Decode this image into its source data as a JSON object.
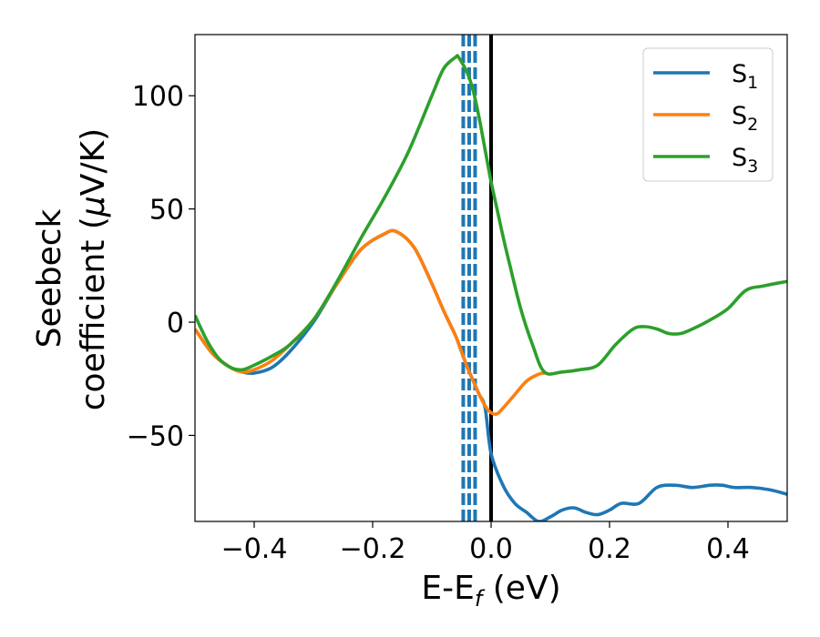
{
  "chart_data": {
    "type": "line",
    "xlabel": {
      "main": "E-E",
      "sub": "f",
      "unit": " (eV)"
    },
    "ylabel": {
      "line1": "Seebeck",
      "line2_pre": "coefficient  (",
      "mu": "μ",
      "line2_post": "V/K)"
    },
    "xlim": [
      -0.5,
      0.5
    ],
    "ylim": [
      -88,
      127
    ],
    "xticks": [
      {
        "value": -0.4,
        "label": "−0.4"
      },
      {
        "value": -0.2,
        "label": "−0.2"
      },
      {
        "value": 0.0,
        "label": "0.0"
      },
      {
        "value": 0.2,
        "label": "0.2"
      },
      {
        "value": 0.4,
        "label": "0.4"
      }
    ],
    "yticks": [
      {
        "value": -50,
        "label": "−50"
      },
      {
        "value": 0,
        "label": "0"
      },
      {
        "value": 50,
        "label": "50"
      },
      {
        "value": 100,
        "label": "100"
      }
    ],
    "grid": false,
    "legend_position": "top-right",
    "vertical_lines": [
      {
        "x": 0.0,
        "color": "#000000",
        "style": "solid"
      },
      {
        "x": -0.047,
        "color": "#1f77b4",
        "style": "dashed"
      },
      {
        "x": -0.037,
        "color": "#1f77b4",
        "style": "dashed"
      },
      {
        "x": -0.027,
        "color": "#1f77b4",
        "style": "dashed"
      }
    ],
    "series": [
      {
        "name": "S",
        "sub": "1",
        "color": "#1f77b4",
        "x": [
          -0.5,
          -0.47,
          -0.44,
          -0.42,
          -0.4,
          -0.37,
          -0.34,
          -0.3,
          -0.26,
          -0.22,
          -0.18,
          -0.16,
          -0.13,
          -0.1,
          -0.08,
          -0.06,
          -0.05,
          -0.04,
          -0.03,
          -0.02,
          -0.01,
          0.0,
          0.02,
          0.04,
          0.06,
          0.08,
          0.1,
          0.12,
          0.14,
          0.16,
          0.18,
          0.2,
          0.22,
          0.25,
          0.28,
          0.31,
          0.34,
          0.37,
          0.39,
          0.41,
          0.44,
          0.47,
          0.5
        ],
        "y": [
          -3,
          -14,
          -20,
          -22,
          -22.5,
          -20,
          -13,
          0,
          17,
          32,
          39,
          40,
          33,
          17,
          5,
          -6,
          -13,
          -20,
          -26,
          -32,
          -38,
          -58,
          -72,
          -80,
          -84,
          -88,
          -86,
          -83,
          -82,
          -84,
          -85,
          -83,
          -80,
          -80,
          -73,
          -72,
          -73,
          -72,
          -72,
          -73,
          -73,
          -74,
          -76
        ]
      },
      {
        "name": "S",
        "sub": "2",
        "color": "#ff7f0e",
        "x": [
          -0.5,
          -0.47,
          -0.44,
          -0.42,
          -0.4,
          -0.37,
          -0.34,
          -0.3,
          -0.26,
          -0.22,
          -0.18,
          -0.16,
          -0.13,
          -0.1,
          -0.08,
          -0.06,
          -0.05,
          -0.04,
          -0.03,
          -0.02,
          -0.01,
          0.0,
          0.01,
          0.02,
          0.04,
          0.06,
          0.08,
          0.09
        ],
        "y": [
          -3,
          -14,
          -20,
          -22,
          -21,
          -17,
          -10,
          1,
          17,
          32,
          39,
          40,
          33,
          17,
          5,
          -6,
          -13,
          -20,
          -26,
          -32,
          -37,
          -40,
          -40.5,
          -38,
          -32,
          -26,
          -23,
          -22.5
        ]
      },
      {
        "name": "S",
        "sub": "3",
        "color": "#2ca02c",
        "x": [
          -0.5,
          -0.48,
          -0.46,
          -0.44,
          -0.42,
          -0.4,
          -0.37,
          -0.34,
          -0.3,
          -0.26,
          -0.22,
          -0.18,
          -0.14,
          -0.1,
          -0.08,
          -0.06,
          -0.055,
          -0.04,
          -0.03,
          -0.02,
          -0.01,
          0.0,
          0.01,
          0.02,
          0.03,
          0.05,
          0.07,
          0.09,
          0.12,
          0.15,
          0.18,
          0.21,
          0.24,
          0.26,
          0.28,
          0.3,
          0.32,
          0.34,
          0.37,
          0.4,
          0.43,
          0.46,
          0.5
        ],
        "y": [
          3,
          -8,
          -16,
          -20,
          -21,
          -19,
          -15,
          -10,
          1,
          18,
          37,
          55,
          75,
          100,
          112,
          117,
          117,
          110,
          102,
          90,
          76,
          62,
          50,
          38,
          27,
          6,
          -10,
          -22,
          -22,
          -21,
          -19,
          -10,
          -3,
          -2,
          -3,
          -5,
          -5,
          -3,
          1,
          6,
          14,
          16,
          18
        ]
      }
    ]
  }
}
